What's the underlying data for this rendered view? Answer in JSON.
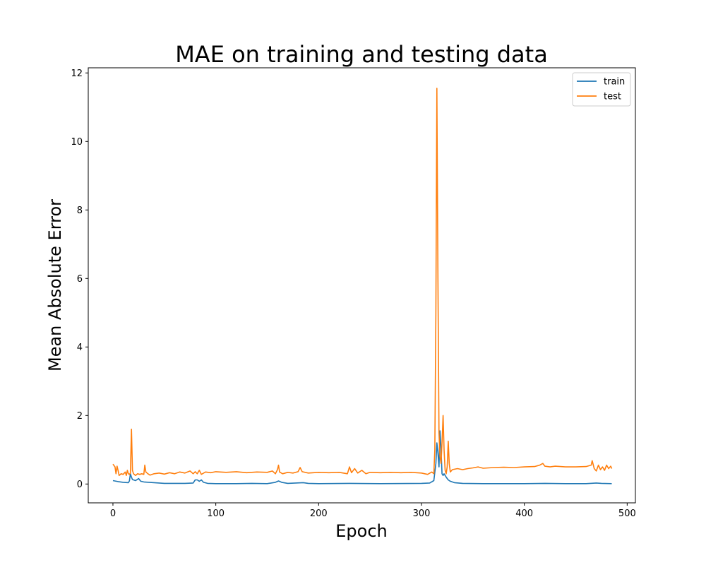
{
  "chart_data": {
    "type": "line",
    "title": "MAE on training and testing data",
    "xlabel": "Epoch",
    "ylabel": "Mean Absolute Error",
    "xlim": [
      -24,
      508
    ],
    "ylim": [
      -0.55,
      12.15
    ],
    "xticks": [
      0,
      100,
      200,
      300,
      400,
      500
    ],
    "yticks": [
      0,
      2,
      4,
      6,
      8,
      10,
      12
    ],
    "grid": false,
    "legend_position": "top-right",
    "series": [
      {
        "name": "train",
        "color": "#1f77b4",
        "points": [
          [
            0,
            0.1
          ],
          [
            5,
            0.07
          ],
          [
            10,
            0.05
          ],
          [
            15,
            0.04
          ],
          [
            16,
            0.09
          ],
          [
            17,
            0.3
          ],
          [
            18,
            0.2
          ],
          [
            19,
            0.13
          ],
          [
            22,
            0.1
          ],
          [
            25,
            0.16
          ],
          [
            27,
            0.08
          ],
          [
            30,
            0.06
          ],
          [
            40,
            0.04
          ],
          [
            50,
            0.02
          ],
          [
            60,
            0.02
          ],
          [
            70,
            0.02
          ],
          [
            78,
            0.03
          ],
          [
            80,
            0.12
          ],
          [
            82,
            0.12
          ],
          [
            84,
            0.08
          ],
          [
            86,
            0.12
          ],
          [
            88,
            0.05
          ],
          [
            92,
            0.02
          ],
          [
            100,
            0.01
          ],
          [
            120,
            0.01
          ],
          [
            135,
            0.02
          ],
          [
            150,
            0.01
          ],
          [
            158,
            0.05
          ],
          [
            161,
            0.09
          ],
          [
            164,
            0.05
          ],
          [
            170,
            0.02
          ],
          [
            185,
            0.04
          ],
          [
            190,
            0.02
          ],
          [
            200,
            0.01
          ],
          [
            230,
            0.02
          ],
          [
            260,
            0.01
          ],
          [
            300,
            0.02
          ],
          [
            308,
            0.03
          ],
          [
            312,
            0.1
          ],
          [
            314,
            0.6
          ],
          [
            315,
            1.2
          ],
          [
            316,
            0.9
          ],
          [
            317,
            0.5
          ],
          [
            318,
            1.55
          ],
          [
            319,
            1.0
          ],
          [
            320,
            0.3
          ],
          [
            321,
            0.25
          ],
          [
            322,
            0.3
          ],
          [
            324,
            0.2
          ],
          [
            326,
            0.12
          ],
          [
            328,
            0.08
          ],
          [
            332,
            0.04
          ],
          [
            340,
            0.02
          ],
          [
            360,
            0.01
          ],
          [
            400,
            0.01
          ],
          [
            420,
            0.02
          ],
          [
            440,
            0.01
          ],
          [
            460,
            0.01
          ],
          [
            470,
            0.03
          ],
          [
            475,
            0.02
          ],
          [
            485,
            0.01
          ]
        ]
      },
      {
        "name": "test",
        "color": "#ff7f0e",
        "points": [
          [
            0,
            0.58
          ],
          [
            2,
            0.5
          ],
          [
            3,
            0.3
          ],
          [
            4,
            0.52
          ],
          [
            5,
            0.4
          ],
          [
            6,
            0.25
          ],
          [
            8,
            0.3
          ],
          [
            10,
            0.28
          ],
          [
            12,
            0.35
          ],
          [
            13,
            0.25
          ],
          [
            14,
            0.4
          ],
          [
            15,
            0.3
          ],
          [
            16,
            0.28
          ],
          [
            17,
            0.32
          ],
          [
            18,
            1.6
          ],
          [
            19,
            0.4
          ],
          [
            20,
            0.3
          ],
          [
            22,
            0.25
          ],
          [
            24,
            0.3
          ],
          [
            26,
            0.28
          ],
          [
            28,
            0.3
          ],
          [
            30,
            0.28
          ],
          [
            31,
            0.55
          ],
          [
            32,
            0.35
          ],
          [
            34,
            0.3
          ],
          [
            36,
            0.26
          ],
          [
            40,
            0.3
          ],
          [
            45,
            0.32
          ],
          [
            50,
            0.29
          ],
          [
            55,
            0.33
          ],
          [
            60,
            0.3
          ],
          [
            65,
            0.35
          ],
          [
            70,
            0.32
          ],
          [
            75,
            0.38
          ],
          [
            78,
            0.3
          ],
          [
            80,
            0.36
          ],
          [
            82,
            0.3
          ],
          [
            84,
            0.4
          ],
          [
            86,
            0.28
          ],
          [
            90,
            0.35
          ],
          [
            95,
            0.33
          ],
          [
            100,
            0.36
          ],
          [
            110,
            0.34
          ],
          [
            120,
            0.36
          ],
          [
            130,
            0.33
          ],
          [
            140,
            0.35
          ],
          [
            150,
            0.34
          ],
          [
            155,
            0.38
          ],
          [
            158,
            0.3
          ],
          [
            160,
            0.42
          ],
          [
            161,
            0.55
          ],
          [
            162,
            0.35
          ],
          [
            165,
            0.3
          ],
          [
            170,
            0.34
          ],
          [
            175,
            0.32
          ],
          [
            180,
            0.36
          ],
          [
            182,
            0.48
          ],
          [
            184,
            0.36
          ],
          [
            190,
            0.32
          ],
          [
            200,
            0.34
          ],
          [
            210,
            0.33
          ],
          [
            220,
            0.34
          ],
          [
            228,
            0.3
          ],
          [
            230,
            0.5
          ],
          [
            232,
            0.33
          ],
          [
            235,
            0.45
          ],
          [
            238,
            0.32
          ],
          [
            242,
            0.4
          ],
          [
            246,
            0.3
          ],
          [
            250,
            0.34
          ],
          [
            260,
            0.33
          ],
          [
            270,
            0.34
          ],
          [
            280,
            0.33
          ],
          [
            290,
            0.34
          ],
          [
            300,
            0.32
          ],
          [
            306,
            0.28
          ],
          [
            310,
            0.35
          ],
          [
            312,
            0.3
          ],
          [
            313,
            1.0
          ],
          [
            314,
            5.0
          ],
          [
            315,
            11.55
          ],
          [
            316,
            6.0
          ],
          [
            317,
            1.5
          ],
          [
            318,
            0.8
          ],
          [
            319,
            0.6
          ],
          [
            320,
            1.2
          ],
          [
            321,
            2.0
          ],
          [
            322,
            1.0
          ],
          [
            323,
            0.4
          ],
          [
            324,
            0.3
          ],
          [
            325,
            0.5
          ],
          [
            326,
            1.25
          ],
          [
            327,
            0.6
          ],
          [
            328,
            0.35
          ],
          [
            330,
            0.42
          ],
          [
            335,
            0.45
          ],
          [
            340,
            0.42
          ],
          [
            345,
            0.45
          ],
          [
            350,
            0.47
          ],
          [
            355,
            0.5
          ],
          [
            360,
            0.46
          ],
          [
            370,
            0.48
          ],
          [
            380,
            0.49
          ],
          [
            390,
            0.48
          ],
          [
            400,
            0.5
          ],
          [
            410,
            0.51
          ],
          [
            415,
            0.55
          ],
          [
            418,
            0.6
          ],
          [
            420,
            0.52
          ],
          [
            425,
            0.5
          ],
          [
            430,
            0.52
          ],
          [
            440,
            0.5
          ],
          [
            450,
            0.5
          ],
          [
            460,
            0.51
          ],
          [
            465,
            0.55
          ],
          [
            466,
            0.68
          ],
          [
            468,
            0.45
          ],
          [
            470,
            0.38
          ],
          [
            472,
            0.55
          ],
          [
            474,
            0.42
          ],
          [
            476,
            0.5
          ],
          [
            478,
            0.4
          ],
          [
            480,
            0.55
          ],
          [
            482,
            0.45
          ],
          [
            484,
            0.52
          ],
          [
            485,
            0.45
          ]
        ]
      }
    ]
  }
}
